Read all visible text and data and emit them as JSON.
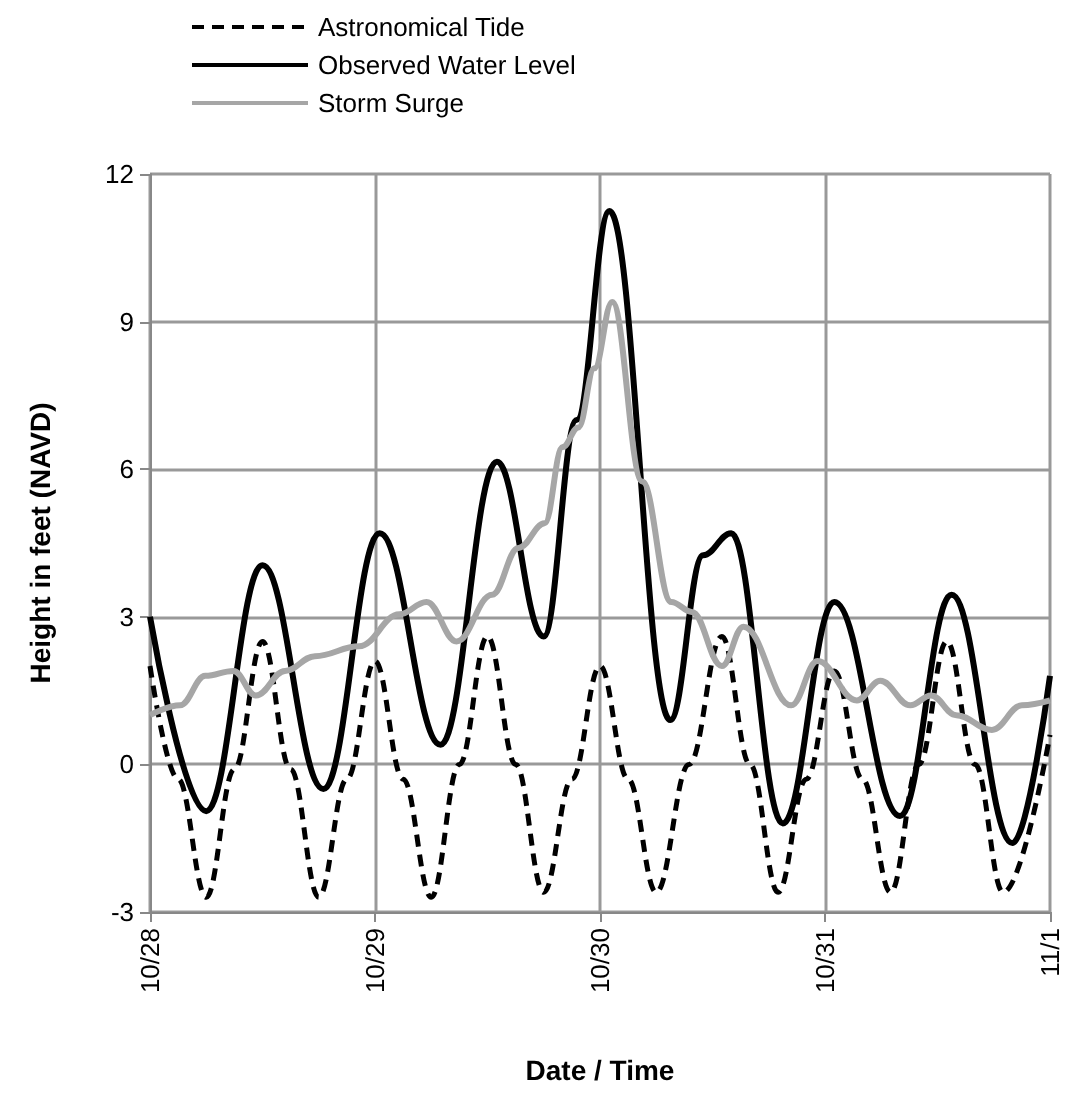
{
  "chart_data": {
    "type": "line",
    "xlabel": "Date / Time",
    "ylabel": "Height in feet (NAVD)",
    "xlim": [
      "--10-28",
      "--11-01"
    ],
    "xticks": [
      {
        "value": "--10-28",
        "label": "10/28"
      },
      {
        "value": "--10-29",
        "label": "10/29"
      },
      {
        "value": "--10-30",
        "label": "10/30"
      },
      {
        "value": "--10-31",
        "label": "10/31"
      },
      {
        "value": "--11-01",
        "label": "11/1"
      }
    ],
    "ylim": [
      -3,
      12
    ],
    "yticks": [
      -3,
      0,
      3,
      6,
      9,
      12
    ],
    "grid": true,
    "legend": "top",
    "marker": "none",
    "series": [
      {
        "name": "Astronomical Tide",
        "color": "#000000",
        "line_style": "dashed",
        "x": [
          "--10-28T00:00",
          "--10-28T03:00",
          "--10-28T06:00",
          "--10-28T09:00",
          "--10-28T12:00",
          "--10-28T15:00",
          "--10-28T18:00",
          "--10-28T21:00",
          "--10-29T00:00",
          "--10-29T03:00",
          "--10-29T06:00",
          "--10-29T09:00",
          "--10-29T12:00",
          "--10-29T15:00",
          "--10-29T18:00",
          "--10-29T21:00",
          "--10-30T00:00",
          "--10-30T03:00",
          "--10-30T06:00",
          "--10-30T09:30",
          "--10-30T13:00",
          "--10-30T16:00",
          "--10-30T19:00",
          "--10-30T22:00",
          "--10-31T01:00",
          "--10-31T04:00",
          "--10-31T07:00",
          "--10-31T10:00",
          "--10-31T13:00",
          "--10-31T16:00",
          "--10-31T19:00",
          "--11-01T00:00"
        ],
        "values": [
          2.0,
          -0.3,
          -2.7,
          -0.1,
          2.5,
          -0.1,
          -2.7,
          -0.3,
          2.1,
          -0.3,
          -2.7,
          0,
          2.6,
          0,
          -2.6,
          -0.3,
          2.0,
          -0.3,
          -2.6,
          0,
          2.6,
          0,
          -2.6,
          -0.3,
          1.9,
          -0.3,
          -2.6,
          0,
          2.5,
          0,
          -2.6,
          0.6
        ]
      },
      {
        "name": "Observed Water Level",
        "color": "#000000",
        "line_style": "solid",
        "x": [
          "--10-28T00:00",
          "--10-28T06:00",
          "--10-28T12:00",
          "--10-28T18:30",
          "--10-29T00:30",
          "--10-29T07:00",
          "--10-29T13:00",
          "--10-29T18:00",
          "--10-29T21:30",
          "--10-30T01:00",
          "--10-30T07:30",
          "--10-30T11:00",
          "--10-30T14:00",
          "--10-30T19:30",
          "--10-31T01:00",
          "--10-31T08:00",
          "--10-31T13:30",
          "--10-31T20:00",
          "--11-01T00:00"
        ],
        "values": [
          3.0,
          -0.95,
          4.05,
          -0.5,
          4.7,
          0.4,
          6.15,
          2.6,
          7,
          11.25,
          0.9,
          4.25,
          4.7,
          -1.2,
          3.3,
          -1.05,
          3.45,
          -1.6,
          1.8
        ]
      },
      {
        "name": "Storm Surge",
        "color": "#a6a6a6",
        "line_style": "solid",
        "x": [
          "--10-28T00:00",
          "--10-28T03:12",
          "--10-28T05:54",
          "--10-28T08:54",
          "--10-28T11:18",
          "--10-28T14:24",
          "--10-28T17:36",
          "--10-28T22:18",
          "--10-29T02:36",
          "--10-29T05:30",
          "--10-29T08:42",
          "--10-29T12:30",
          "--10-29T15:18",
          "--10-29T18:06",
          "--10-29T20:00",
          "--10-29T21:42",
          "--10-29T23:24",
          "--10-30T01:18",
          "--10-30T04:30",
          "--10-30T07:36",
          "--10-30T09:48",
          "--10-30T13:00",
          "--10-30T15:18",
          "--10-30T20:24",
          "--10-30T23:12",
          "--10-31T03:24",
          "--10-31T05:54",
          "--10-31T09:06",
          "--10-31T11:18",
          "--10-31T14:00",
          "--10-31T17:48",
          "--10-31T21:00",
          "--11-01T00:00"
        ],
        "values": [
          1.0,
          1.2,
          1.8,
          1.9,
          1.4,
          1.9,
          2.2,
          2.4,
          3.05,
          3.3,
          2.5,
          3.45,
          4.4,
          4.9,
          6.45,
          6.85,
          8.05,
          9.4,
          5.75,
          3.3,
          3.1,
          2.0,
          2.8,
          1.2,
          2.1,
          1.3,
          1.7,
          1.2,
          1.4,
          1.0,
          0.7,
          1.2,
          1.3
        ]
      }
    ]
  }
}
